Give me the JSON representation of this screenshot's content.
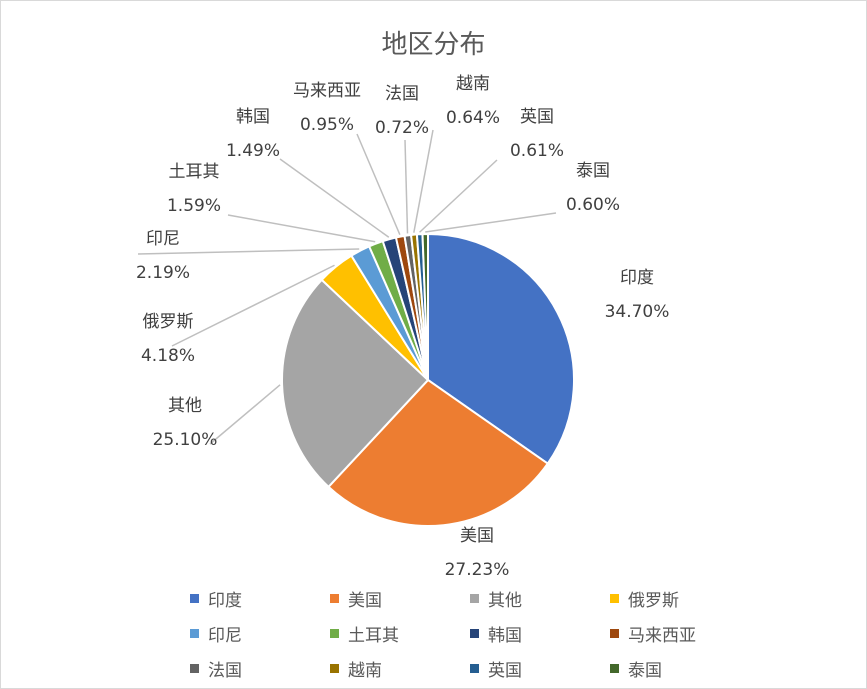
{
  "chart_data": {
    "type": "pie",
    "title": "地区分布",
    "slices": [
      {
        "label": "印度",
        "value": 34.7,
        "display": "34.70%",
        "color": "#4472C4"
      },
      {
        "label": "美国",
        "value": 27.23,
        "display": "27.23%",
        "color": "#ED7D31"
      },
      {
        "label": "其他",
        "value": 25.1,
        "display": "25.10%",
        "color": "#A5A5A5"
      },
      {
        "label": "俄罗斯",
        "value": 4.18,
        "display": "4.18%",
        "color": "#FFC000"
      },
      {
        "label": "印尼",
        "value": 2.19,
        "display": "2.19%",
        "color": "#5B9BD5"
      },
      {
        "label": "土耳其",
        "value": 1.59,
        "display": "1.59%",
        "color": "#70AD47"
      },
      {
        "label": "韩国",
        "value": 1.49,
        "display": "1.49%",
        "color": "#264478"
      },
      {
        "label": "马来西亚",
        "value": 0.95,
        "display": "0.95%",
        "color": "#9E480E"
      },
      {
        "label": "法国",
        "value": 0.72,
        "display": "0.72%",
        "color": "#636363"
      },
      {
        "label": "越南",
        "value": 0.64,
        "display": "0.64%",
        "color": "#997300"
      },
      {
        "label": "英国",
        "value": 0.61,
        "display": "0.61%",
        "color": "#255E91"
      },
      {
        "label": "泰国",
        "value": 0.6,
        "display": "0.60%",
        "color": "#43682B"
      }
    ],
    "legend_position": "bottom"
  }
}
